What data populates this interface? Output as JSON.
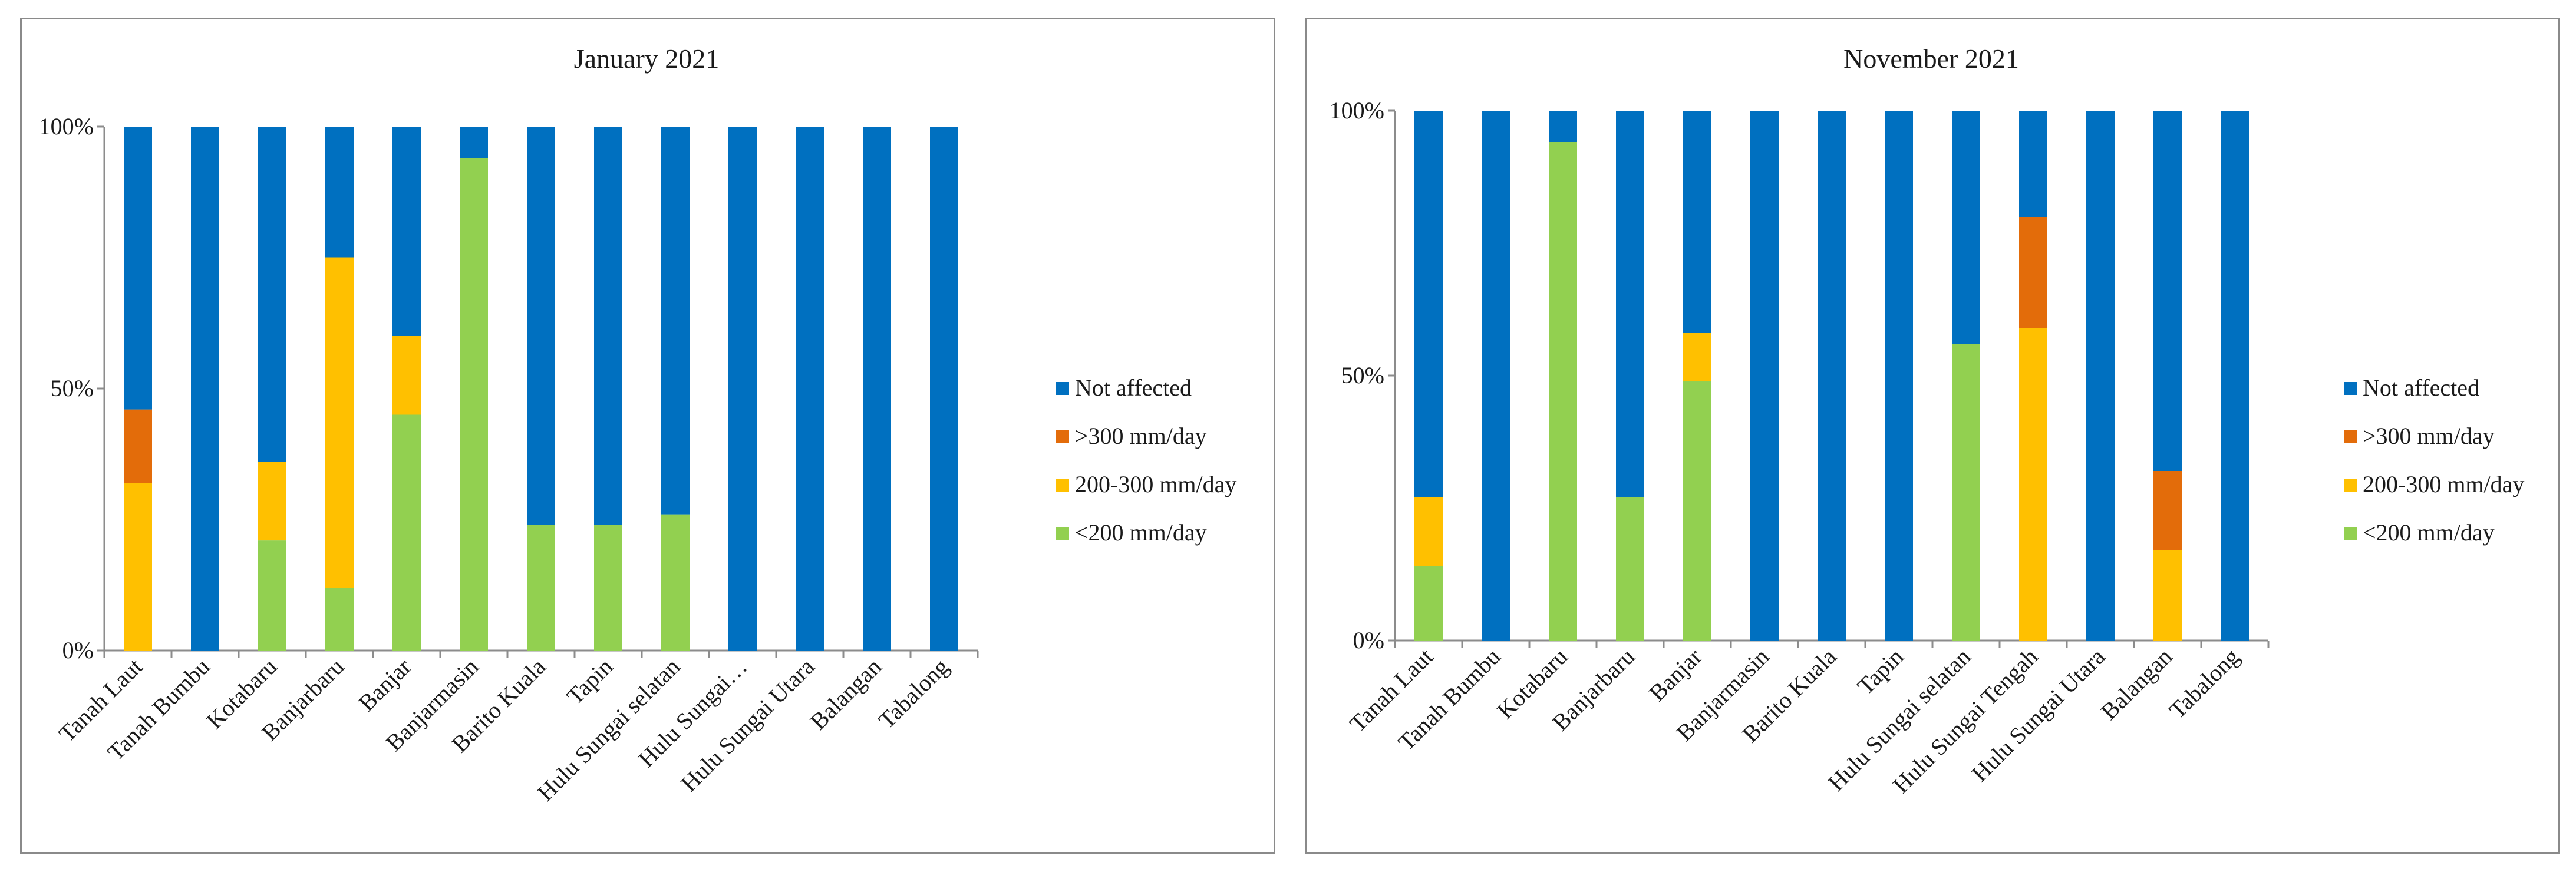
{
  "colors": {
    "not_affected": "#0070C0",
    "gt300": "#E36C0A",
    "r200_300": "#FFC000",
    "lt200": "#92D050"
  },
  "chart_data": [
    {
      "type": "bar",
      "stacked": true,
      "title": "January 2021",
      "xlabel": "",
      "ylabel": "",
      "ylim": [
        0,
        100
      ],
      "yticks": [
        "0%",
        "50%",
        "100%"
      ],
      "categories": [
        "Tanah Laut",
        "Tanah Bumbu",
        "Kotabaru",
        "Banjarbaru",
        "Banjar",
        "Banjarmasin",
        "Barito Kuala",
        "Tapin",
        "Hulu Sungai selatan",
        "Hulu Sungai…",
        "Hulu Sungai Utara",
        "Balangan",
        "Tabalong"
      ],
      "legend": [
        "Not affected",
        ">300 mm/day",
        "200-300 mm/day",
        "<200 mm/day"
      ],
      "legend_position": "right",
      "series": [
        {
          "name": "<200 mm/day",
          "color_key": "lt200",
          "values": [
            0,
            0,
            21,
            12,
            45,
            94,
            24,
            24,
            26,
            0,
            0,
            0,
            0
          ]
        },
        {
          "name": "200-300 mm/day",
          "color_key": "r200_300",
          "values": [
            32,
            0,
            15,
            63,
            15,
            0,
            0,
            0,
            0,
            0,
            0,
            0,
            0
          ]
        },
        {
          "name": ">300 mm/day",
          "color_key": "gt300",
          "values": [
            14,
            0,
            0,
            0,
            0,
            0,
            0,
            0,
            0,
            0,
            0,
            0,
            0
          ]
        },
        {
          "name": "Not affected",
          "color_key": "not_affected",
          "values": [
            54,
            100,
            64,
            25,
            40,
            6,
            76,
            76,
            74,
            100,
            100,
            100,
            100
          ]
        }
      ]
    },
    {
      "type": "bar",
      "stacked": true,
      "title": "November 2021",
      "xlabel": "",
      "ylabel": "",
      "ylim": [
        0,
        100
      ],
      "yticks": [
        "0%",
        "50%",
        "100%"
      ],
      "categories": [
        "Tanah Laut",
        "Tanah Bumbu",
        "Kotabaru",
        "Banjarbaru",
        "Banjar",
        "Banjarmasin",
        "Barito Kuala",
        "Tapin",
        "Hulu Sungai selatan",
        "Hulu Sungai Tengah",
        "Hulu Sungai Utara",
        "Balangan",
        "Tabalong"
      ],
      "legend": [
        "Not affected",
        ">300 mm/day",
        "200-300 mm/day",
        "<200 mm/day"
      ],
      "legend_position": "right",
      "series": [
        {
          "name": "<200 mm/day",
          "color_key": "lt200",
          "values": [
            14,
            0,
            94,
            27,
            49,
            0,
            0,
            0,
            56,
            0,
            0,
            0,
            0
          ]
        },
        {
          "name": "200-300 mm/day",
          "color_key": "r200_300",
          "values": [
            13,
            0,
            0,
            0,
            9,
            0,
            0,
            0,
            0,
            59,
            0,
            17,
            0
          ]
        },
        {
          "name": ">300 mm/day",
          "color_key": "gt300",
          "values": [
            0,
            0,
            0,
            0,
            0,
            0,
            0,
            0,
            0,
            21,
            0,
            15,
            0
          ]
        },
        {
          "name": "Not affected",
          "color_key": "not_affected",
          "values": [
            73,
            100,
            6,
            73,
            42,
            100,
            100,
            100,
            44,
            20,
            100,
            68,
            100
          ]
        }
      ]
    }
  ]
}
